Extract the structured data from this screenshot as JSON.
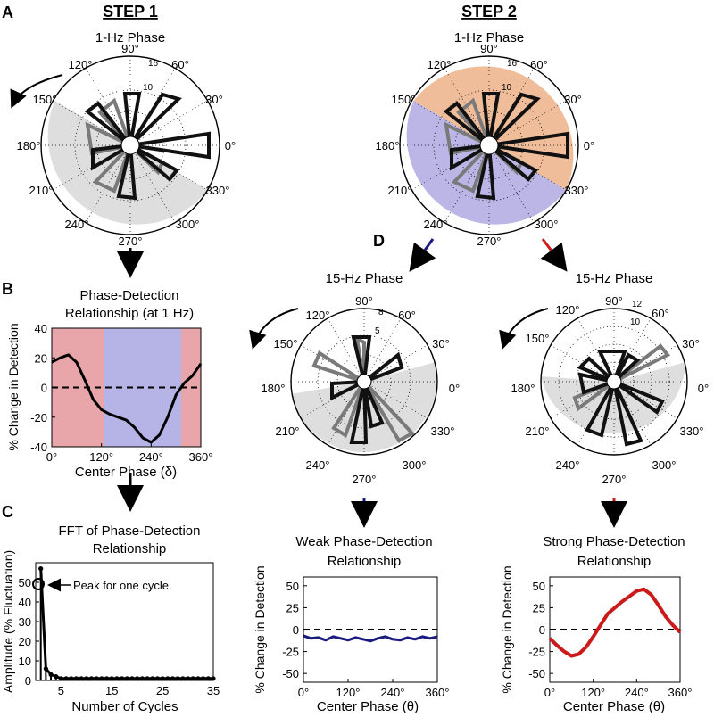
{
  "panel_letters": [
    "A",
    "B",
    "C",
    "D"
  ],
  "step1": {
    "title": "STEP 1"
  },
  "step2": {
    "title": "STEP 2"
  },
  "colors": {
    "red_shade": "#e8a6aa",
    "blue_shade": "#b6b4e6",
    "gray_shade": "#dedede",
    "orange_shade": "#f0bd9b",
    "purple_shade": "#bbb6e6",
    "blue_arrow": "#1a1a80",
    "red_arrow": "#cc1a1a",
    "blue_line": "#1a1a80",
    "red_line": "#cc1a1a",
    "gray_bar": "#777777"
  },
  "polars": [
    {
      "id": "a",
      "title": "1-Hz Phase",
      "rlabels": [
        "10",
        "16"
      ],
      "angles": [
        "90°",
        "60°",
        "30°",
        "0°",
        "330°",
        "300°",
        "270°",
        "240°",
        "210°",
        "180°",
        "150°",
        "120°"
      ]
    },
    {
      "id": "b",
      "title": "1-Hz Phase",
      "rlabels": [
        "10",
        "16"
      ],
      "angles": [
        "90°",
        "60°",
        "30°",
        "0°",
        "330°",
        "300°",
        "270°",
        "240°",
        "210°",
        "180°",
        "150°",
        "120°"
      ]
    },
    {
      "id": "c",
      "title": "15-Hz Phase",
      "rlabels": [
        "5",
        "8"
      ],
      "angles": [
        "90°",
        "60°",
        "30°",
        "0°",
        "330°",
        "300°",
        "270°",
        "240°",
        "210°",
        "180°",
        "150°",
        "120°"
      ]
    },
    {
      "id": "d",
      "title": "15-Hz Phase",
      "rlabels": [
        "10",
        "12"
      ],
      "angles": [
        "90°",
        "60°",
        "30°",
        "0°",
        "330°",
        "300°",
        "270°",
        "240°",
        "210°",
        "180°",
        "150°",
        "120°"
      ]
    }
  ],
  "panelB": {
    "title_line1": "Phase-Detection",
    "title_line2": "Relationship (at 1 Hz)",
    "ylabel": "% Change in Detection",
    "xlabel": "Center Phase (δ)"
  },
  "panelC": {
    "title_line1": "FFT of Phase-Detection",
    "title_line2": "Relationship",
    "ylabel": "Amplitude (% Fluctuation)",
    "xlabel": "Number of Cycles",
    "annotation": "Peak for one cycle."
  },
  "panelWeak": {
    "title_line1": "Weak Phase-Detection",
    "title_line2": "Relationship",
    "ylabel": "% Change in Detection",
    "xlabel": "Center Phase (θ)"
  },
  "panelStrong": {
    "title_line1": "Strong Phase-Detection",
    "title_line2": "Relationship",
    "ylabel": "% Change in Detection",
    "xlabel": "Center Phase (θ)"
  },
  "chart_data": [
    {
      "type": "line",
      "id": "B",
      "x": [
        0,
        20,
        40,
        60,
        80,
        100,
        120,
        140,
        160,
        180,
        200,
        220,
        240,
        260,
        280,
        300,
        320,
        340,
        360
      ],
      "y": [
        17,
        20,
        22,
        17,
        5,
        -8,
        -15,
        -18,
        -20,
        -22,
        -27,
        -34,
        -37,
        -32,
        -20,
        -5,
        3,
        8,
        16
      ],
      "xlim": [
        0,
        360
      ],
      "ylim": [
        -40,
        40
      ],
      "xticks": [
        "0°",
        "120°",
        "240°",
        "360°"
      ],
      "yticks": [
        "40",
        "20",
        "0",
        "-20",
        "-40"
      ],
      "ylabel": "% Change in Detection",
      "xlabel": "Center Phase (δ)"
    },
    {
      "type": "line",
      "id": "C",
      "x": [
        1,
        2,
        3,
        4,
        5,
        6,
        7,
        8,
        9,
        10,
        11,
        12,
        13,
        14,
        15,
        16,
        17,
        18,
        19,
        20,
        21,
        22,
        23,
        24,
        25,
        26,
        27,
        28,
        29,
        30,
        31,
        32,
        33,
        34,
        35
      ],
      "y": [
        57,
        6,
        3,
        2,
        1,
        1,
        1,
        1,
        1,
        1,
        1,
        1,
        1,
        1,
        1,
        1,
        1,
        1,
        1,
        1,
        1,
        1,
        1,
        1,
        1,
        1,
        1,
        1,
        1,
        1,
        1,
        1,
        1,
        1,
        1
      ],
      "xlim": [
        0,
        35
      ],
      "ylim": [
        0,
        60
      ],
      "xticks": [
        "5",
        "15",
        "25",
        "35"
      ],
      "yticks": [
        "50",
        "40",
        "30",
        "20",
        "10",
        "0"
      ],
      "ylabel": "Amplitude (% Fluctuation)",
      "xlabel": "Number of Cycles"
    },
    {
      "type": "line",
      "id": "weak",
      "x": [
        0,
        20,
        40,
        60,
        80,
        100,
        120,
        140,
        160,
        180,
        200,
        220,
        240,
        260,
        280,
        300,
        320,
        340,
        360
      ],
      "y": [
        -7,
        -10,
        -9,
        -12,
        -8,
        -10,
        -12,
        -9,
        -11,
        -13,
        -10,
        -8,
        -11,
        -12,
        -9,
        -11,
        -8,
        -10,
        -8
      ],
      "xlim": [
        0,
        360
      ],
      "ylim": [
        -60,
        60
      ],
      "xticks": [
        "0°",
        "120°",
        "240°",
        "360°"
      ],
      "yticks": [
        "50",
        "25",
        "0",
        "-25",
        "-50"
      ],
      "ylabel": "% Change in Detection",
      "xlabel": "Center Phase (θ)"
    },
    {
      "type": "line",
      "id": "strong",
      "x": [
        0,
        20,
        40,
        60,
        80,
        100,
        120,
        140,
        160,
        180,
        200,
        220,
        240,
        260,
        280,
        300,
        320,
        340,
        360
      ],
      "y": [
        -10,
        -18,
        -25,
        -30,
        -28,
        -20,
        -8,
        5,
        18,
        25,
        32,
        38,
        44,
        46,
        40,
        28,
        15,
        5,
        -3
      ],
      "xlim": [
        0,
        360
      ],
      "ylim": [
        -60,
        60
      ],
      "xticks": [
        "0°",
        "120°",
        "240°",
        "360°"
      ],
      "yticks": [
        "50",
        "25",
        "0",
        "-25",
        "-50"
      ],
      "ylabel": "% Change in Detection",
      "xlabel": "Center Phase (θ)"
    }
  ]
}
